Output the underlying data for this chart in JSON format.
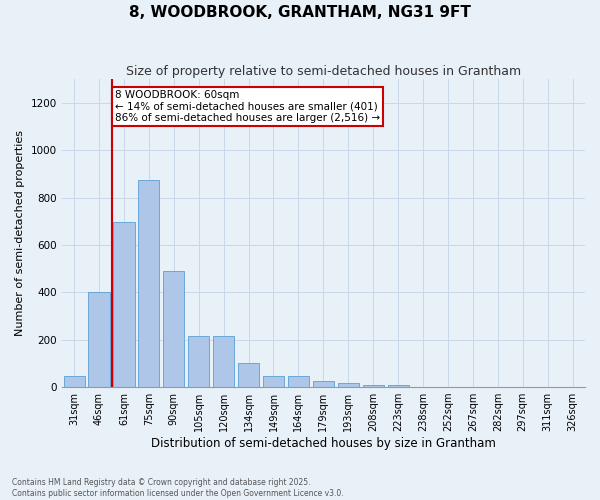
{
  "title": "8, WOODBROOK, GRANTHAM, NG31 9FT",
  "subtitle": "Size of property relative to semi-detached houses in Grantham",
  "xlabel": "Distribution of semi-detached houses by size in Grantham",
  "ylabel": "Number of semi-detached properties",
  "categories": [
    "31sqm",
    "46sqm",
    "61sqm",
    "75sqm",
    "90sqm",
    "105sqm",
    "120sqm",
    "134sqm",
    "149sqm",
    "164sqm",
    "179sqm",
    "193sqm",
    "208sqm",
    "223sqm",
    "238sqm",
    "252sqm",
    "267sqm",
    "282sqm",
    "297sqm",
    "311sqm",
    "326sqm"
  ],
  "values": [
    45,
    400,
    695,
    875,
    490,
    215,
    215,
    100,
    47,
    47,
    25,
    17,
    10,
    8,
    2,
    1,
    1,
    0,
    0,
    0,
    0
  ],
  "bar_color": "#aec6e8",
  "bar_edge_color": "#5a9fd4",
  "annotation_text_title": "8 WOODBROOK: 60sqm",
  "annotation_text_line2": "← 14% of semi-detached houses are smaller (401)",
  "annotation_text_line3": "86% of semi-detached houses are larger (2,516) →",
  "annotation_box_color": "#ffffff",
  "annotation_box_edge_color": "#cc0000",
  "vline_color": "#cc0000",
  "vline_x_index": 1,
  "ylim": [
    0,
    1300
  ],
  "yticks": [
    0,
    200,
    400,
    600,
    800,
    1000,
    1200
  ],
  "grid_color": "#c8d8e8",
  "background_color": "#e8f0f8",
  "footer_line1": "Contains HM Land Registry data © Crown copyright and database right 2025.",
  "footer_line2": "Contains public sector information licensed under the Open Government Licence v3.0.",
  "title_fontsize": 11,
  "subtitle_fontsize": 9,
  "tick_fontsize": 7,
  "ylabel_fontsize": 8,
  "xlabel_fontsize": 8.5,
  "annotation_fontsize": 7.5,
  "footer_fontsize": 5.5
}
